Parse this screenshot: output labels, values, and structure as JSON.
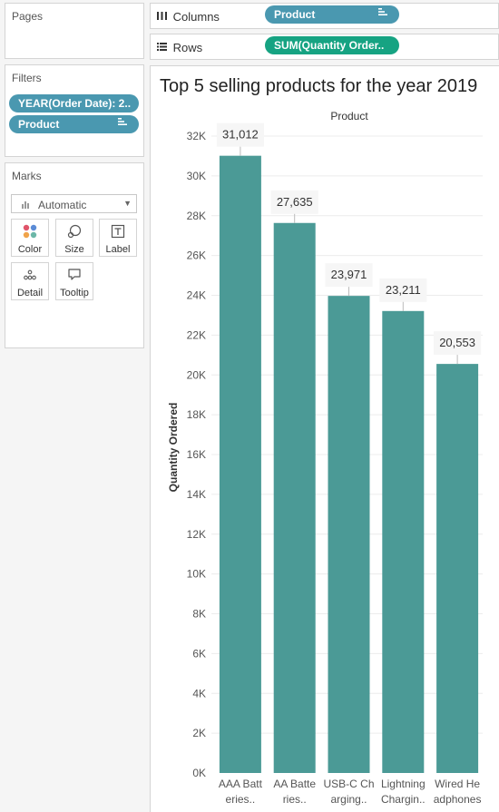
{
  "sidebar": {
    "pages_title": "Pages",
    "filters_title": "Filters",
    "filters": [
      "YEAR(Order Date): 2..",
      "Product"
    ],
    "marks_title": "Marks",
    "mark_type": "Automatic",
    "mark_buttons": [
      "Color",
      "Size",
      "Label",
      "Detail",
      "Tooltip"
    ]
  },
  "shelves": {
    "columns_label": "Columns",
    "columns_pill": "Product",
    "rows_label": "Rows",
    "rows_pill": "SUM(Quantity Order.."
  },
  "colors": {
    "bar": "#4b9a96",
    "pill_blue": "#4a98b0",
    "pill_green": "#16a382"
  },
  "chart_data": {
    "type": "bar",
    "title": "Top 5 selling products for the year 2019",
    "column_header": "Product",
    "ylabel": "Quantity Ordered",
    "xlabel": "",
    "categories": [
      "AAA Batteries..",
      "AA Batteries..",
      "USB-C Charging..",
      "Lightning Chargin..",
      "Wired Headphones"
    ],
    "category_lines": [
      [
        "AAA Batt",
        "eries.."
      ],
      [
        "AA Batte",
        "ries.."
      ],
      [
        "USB-C Ch",
        "arging.."
      ],
      [
        "Lightning",
        "Chargin.."
      ],
      [
        "Wired He",
        "adphones"
      ]
    ],
    "values": [
      31012,
      27635,
      23971,
      23211,
      20553
    ],
    "data_labels": [
      "31,012",
      "27,635",
      "23,971",
      "23,211",
      "20,553"
    ],
    "ylim": [
      0,
      32000
    ],
    "yticks": [
      0,
      2000,
      4000,
      6000,
      8000,
      10000,
      12000,
      14000,
      16000,
      18000,
      20000,
      22000,
      24000,
      26000,
      28000,
      30000,
      32000
    ],
    "ytick_labels": [
      "0K",
      "2K",
      "4K",
      "6K",
      "8K",
      "10K",
      "12K",
      "14K",
      "16K",
      "18K",
      "20K",
      "22K",
      "24K",
      "26K",
      "28K",
      "30K",
      "32K"
    ],
    "grid": true
  }
}
